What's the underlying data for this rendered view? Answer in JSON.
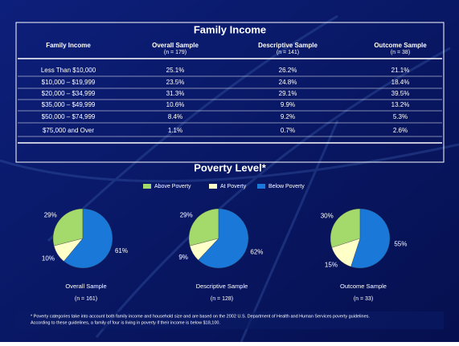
{
  "table": {
    "title": "Family Income",
    "headers": [
      {
        "label": "Family Income"
      },
      {
        "label": "Overall Sample",
        "n": "(n = 179)"
      },
      {
        "label": "Descriptive Sample",
        "n": "(n = 141)"
      },
      {
        "label": "Outcome Sample",
        "n": "(n = 38)"
      }
    ],
    "rows": [
      [
        "Less Than $10,000",
        "25.1%",
        "26.2%",
        "21.1%"
      ],
      [
        "$10,000 – $19,999",
        "23.5%",
        "24.8%",
        "18.4%"
      ],
      [
        "$20,000 – $34,999",
        "31.3%",
        "29.1%",
        "39.5%"
      ],
      [
        "$35,000 – $49,999",
        "10.6%",
        "9.9%",
        "13.2%"
      ],
      [
        "$50,000 – $74,999",
        "8.4%",
        "9.2%",
        "5.3%"
      ],
      [
        "$75,000 and Over",
        "1.1%",
        "0.7%",
        "2.6%"
      ]
    ]
  },
  "poverty": {
    "title": "Poverty Level*",
    "categories": [
      "Above Poverty",
      "At Poverty",
      "Below Poverty"
    ],
    "colors": [
      "#a4d96c",
      "#ffffc8",
      "#1a78d8"
    ]
  },
  "chart_data": [
    {
      "type": "pie",
      "title": "Overall Sample",
      "subtitle": "(n = 161)",
      "values": [
        29,
        10,
        61
      ],
      "value_labels": [
        "29%",
        "10%",
        "61%"
      ]
    },
    {
      "type": "pie",
      "title": "Descriptive Sample",
      "subtitle": "(n = 128)",
      "values": [
        29,
        9,
        62
      ],
      "value_labels": [
        "29%",
        "9%",
        "62%"
      ]
    },
    {
      "type": "pie",
      "title": "Outcome Sample",
      "subtitle": "(n = 33)",
      "values": [
        30,
        15,
        55
      ],
      "value_labels": [
        "30%",
        "15%",
        "55%"
      ]
    }
  ],
  "footnote": [
    "* Poverty categories take into account both family income and household size and are based on the 2002 U.S. Department of Health and Human Services poverty guidelines.",
    "According to these guidelines, a family of four is living in poverty if their income is below $18,100."
  ]
}
